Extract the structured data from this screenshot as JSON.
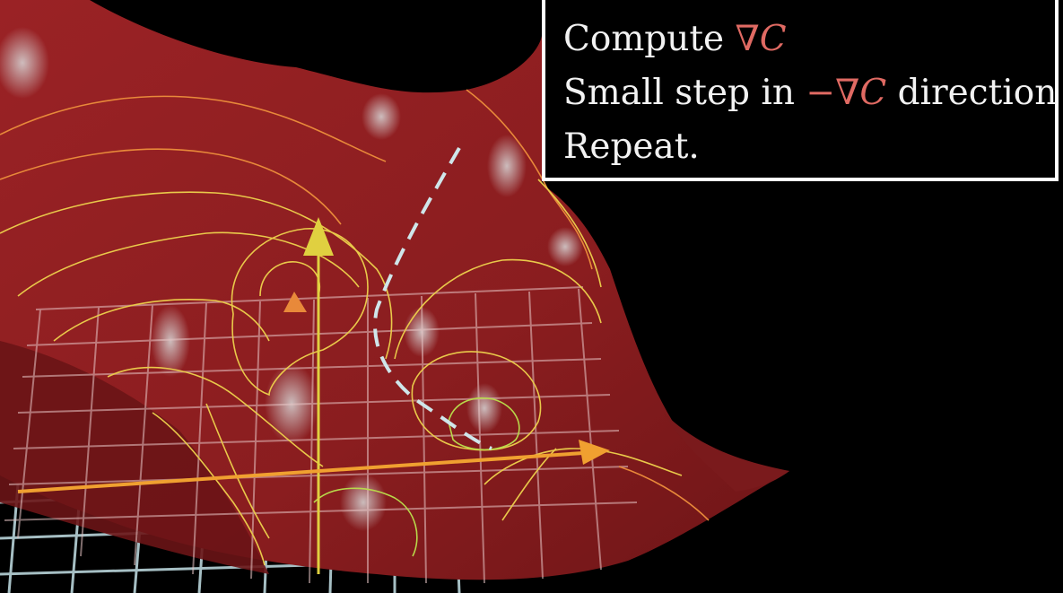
{
  "caption": {
    "line1": {
      "text": "Compute ",
      "symbol": "∇",
      "var": "C"
    },
    "line2": {
      "text_before": "Small step in ",
      "minus": "−",
      "symbol": "∇",
      "var": "C",
      "text_after": " direction"
    },
    "line3": {
      "text": "Repeat."
    }
  },
  "colors": {
    "surface": "#8a1d1f",
    "contour_yellow": "#e9c94a",
    "contour_orange": "#e8893a",
    "grid": "#b8d4da",
    "path": "#cfe6ea",
    "axis_x": "#f0a030",
    "axis_y": "#e0d040",
    "highlight": "#c9c9c9"
  }
}
